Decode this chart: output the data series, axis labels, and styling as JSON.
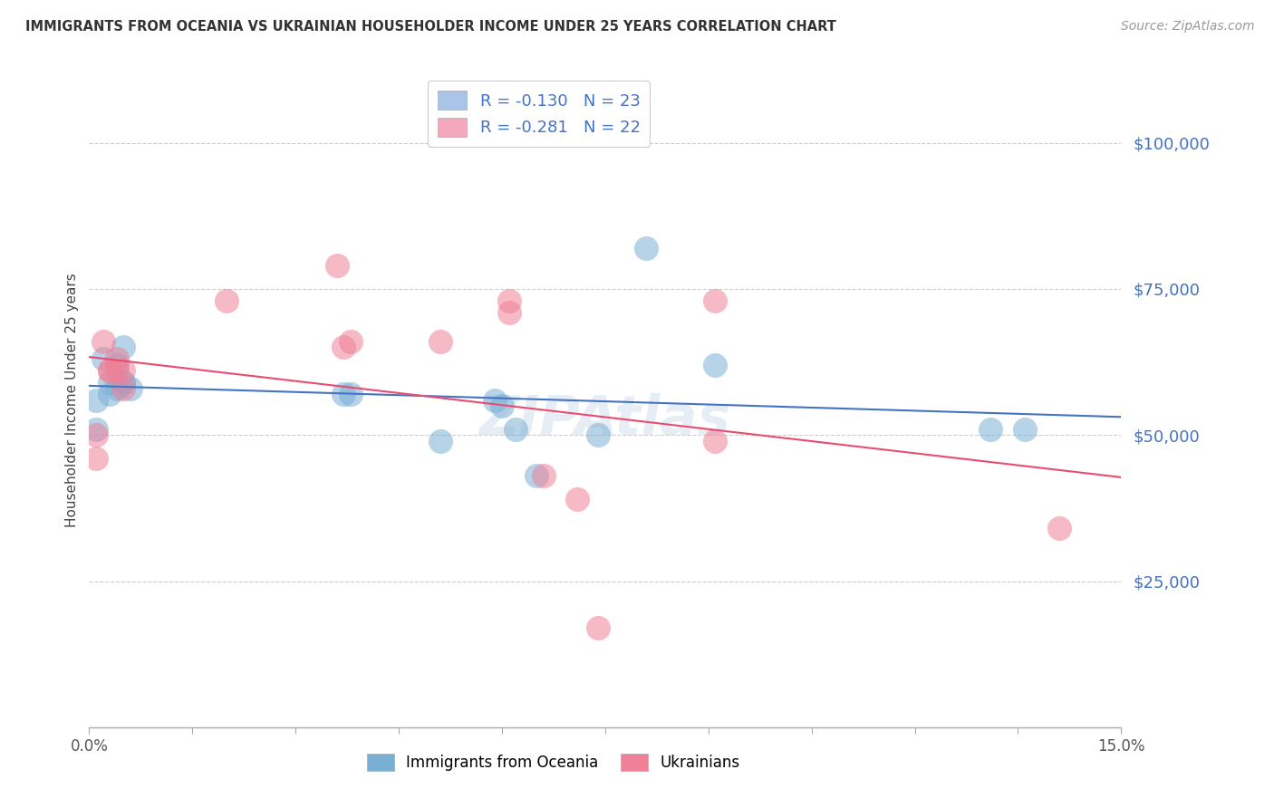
{
  "title": "IMMIGRANTS FROM OCEANIA VS UKRAINIAN HOUSEHOLDER INCOME UNDER 25 YEARS CORRELATION CHART",
  "source": "Source: ZipAtlas.com",
  "ylabel": "Householder Income Under 25 years",
  "ytick_values": [
    25000,
    50000,
    75000,
    100000
  ],
  "ymin": 0,
  "ymax": 112000,
  "xmin": 0.0,
  "xmax": 0.15,
  "xtick_values": [
    0.0,
    0.015,
    0.03,
    0.045,
    0.06,
    0.075,
    0.09,
    0.105,
    0.12,
    0.135,
    0.15
  ],
  "xtick_labels": [
    "0.0%",
    "",
    "",
    "",
    "",
    "",
    "",
    "",
    "",
    "",
    "15.0%"
  ],
  "legend_line1": "R = -0.130   N = 23",
  "legend_line2": "R = -0.281   N = 22",
  "legend_color1": "#aac4e8",
  "legend_color2": "#f4a8be",
  "legend_text_color": "#4472C4",
  "legend_series": [
    "Immigrants from Oceania",
    "Ukrainians"
  ],
  "oceania_points": [
    [
      0.001,
      51000
    ],
    [
      0.001,
      56000
    ],
    [
      0.002,
      63000
    ],
    [
      0.003,
      59000
    ],
    [
      0.003,
      57000
    ],
    [
      0.004,
      62000
    ],
    [
      0.004,
      58000
    ],
    [
      0.005,
      65000
    ],
    [
      0.005,
      59000
    ],
    [
      0.005,
      59000
    ],
    [
      0.006,
      58000
    ],
    [
      0.037,
      57000
    ],
    [
      0.038,
      57000
    ],
    [
      0.051,
      49000
    ],
    [
      0.059,
      56000
    ],
    [
      0.06,
      55000
    ],
    [
      0.062,
      51000
    ],
    [
      0.065,
      43000
    ],
    [
      0.074,
      50000
    ],
    [
      0.081,
      82000
    ],
    [
      0.091,
      62000
    ],
    [
      0.131,
      51000
    ],
    [
      0.136,
      51000
    ]
  ],
  "ukrainian_points": [
    [
      0.001,
      46000
    ],
    [
      0.001,
      50000
    ],
    [
      0.002,
      66000
    ],
    [
      0.003,
      61000
    ],
    [
      0.003,
      61000
    ],
    [
      0.004,
      63000
    ],
    [
      0.004,
      61000
    ],
    [
      0.005,
      61000
    ],
    [
      0.005,
      58000
    ],
    [
      0.02,
      73000
    ],
    [
      0.036,
      79000
    ],
    [
      0.037,
      65000
    ],
    [
      0.038,
      66000
    ],
    [
      0.051,
      66000
    ],
    [
      0.061,
      71000
    ],
    [
      0.061,
      73000
    ],
    [
      0.066,
      43000
    ],
    [
      0.071,
      39000
    ],
    [
      0.074,
      17000
    ],
    [
      0.091,
      73000
    ],
    [
      0.091,
      49000
    ],
    [
      0.141,
      34000
    ]
  ],
  "oceania_color": "#7aafd4",
  "ukrainian_color": "#f08098",
  "oceania_line_color": "#4472C4",
  "ukrainian_line_color": "#E84C6E",
  "background_color": "#ffffff",
  "title_color": "#333333",
  "source_color": "#999999",
  "ytick_color": "#4472C4",
  "grid_color": "#cccccc"
}
